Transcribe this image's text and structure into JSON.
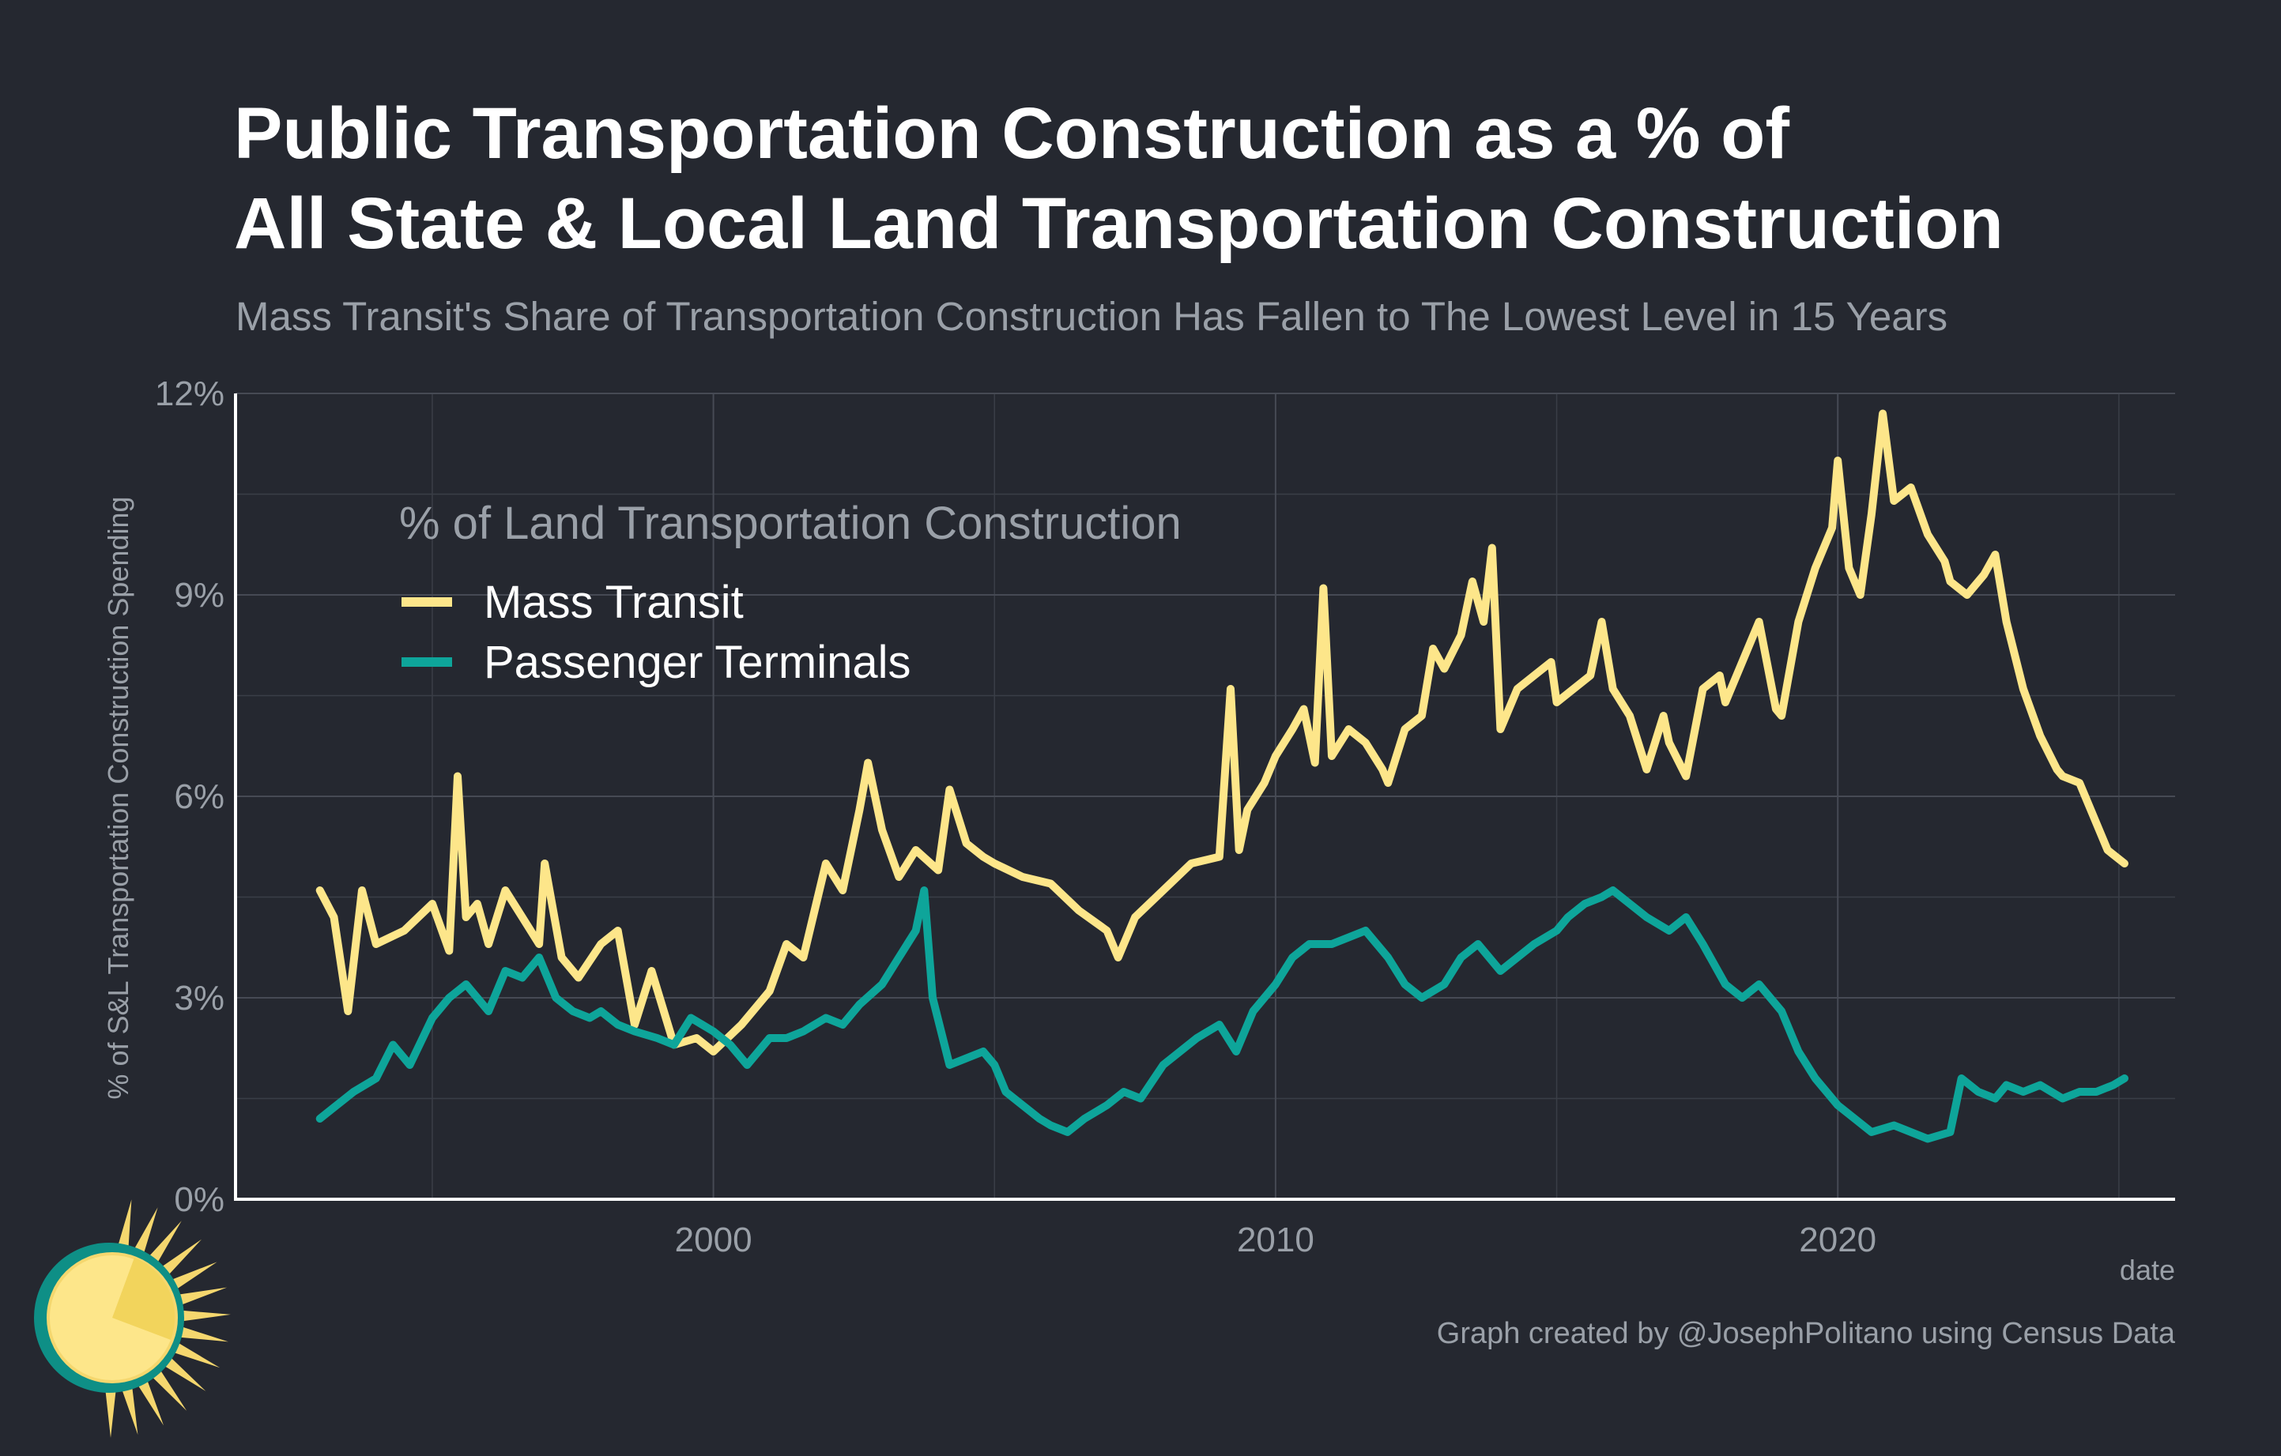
{
  "chart_data": {
    "type": "line",
    "title_line1": "Public Transportation Construction as a % of",
    "title_line2": "All State & Local Land Transportation Construction",
    "subtitle": "Mass Transit's Share of Transportation Construction Has Fallen to The Lowest Level in 15 Years",
    "xlabel": "date",
    "ylabel": "% of S&L Transportation Construction Spending",
    "caption": "Graph created by @JosephPolitano using Census Data",
    "legend_title": "% of Land Transportation Construction",
    "legend_position": "top-left",
    "grid": true,
    "xlim": [
      1991.5,
      2026.0
    ],
    "ylim": [
      0,
      12
    ],
    "x_ticks": [
      2000,
      2010,
      2020
    ],
    "x_tick_labels": [
      "2000",
      "2010",
      "2020"
    ],
    "y_ticks": [
      0,
      3,
      6,
      9,
      12
    ],
    "y_tick_labels": [
      "0%",
      "3%",
      "6%",
      "9%",
      "12%"
    ],
    "series": [
      {
        "name": "Mass Transit",
        "color": "#fde68a",
        "points": [
          [
            1993.0,
            4.6
          ],
          [
            1993.25,
            4.2
          ],
          [
            1993.5,
            2.8
          ],
          [
            1993.75,
            4.6
          ],
          [
            1994.0,
            3.8
          ],
          [
            1994.5,
            4.0
          ],
          [
            1995.0,
            4.4
          ],
          [
            1995.3,
            3.7
          ],
          [
            1995.45,
            6.3
          ],
          [
            1995.6,
            4.2
          ],
          [
            1995.8,
            4.4
          ],
          [
            1996.0,
            3.8
          ],
          [
            1996.3,
            4.6
          ],
          [
            1996.6,
            4.2
          ],
          [
            1996.9,
            3.8
          ],
          [
            1997.0,
            5.0
          ],
          [
            1997.3,
            3.6
          ],
          [
            1997.6,
            3.3
          ],
          [
            1998.0,
            3.8
          ],
          [
            1998.3,
            4.0
          ],
          [
            1998.6,
            2.6
          ],
          [
            1998.9,
            3.4
          ],
          [
            1999.3,
            2.3
          ],
          [
            1999.7,
            2.4
          ],
          [
            2000.0,
            2.2
          ],
          [
            2000.5,
            2.6
          ],
          [
            2001.0,
            3.1
          ],
          [
            2001.3,
            3.8
          ],
          [
            2001.6,
            3.6
          ],
          [
            2002.0,
            5.0
          ],
          [
            2002.3,
            4.6
          ],
          [
            2002.6,
            5.8
          ],
          [
            2002.75,
            6.5
          ],
          [
            2003.0,
            5.5
          ],
          [
            2003.3,
            4.8
          ],
          [
            2003.6,
            5.2
          ],
          [
            2004.0,
            4.9
          ],
          [
            2004.2,
            6.1
          ],
          [
            2004.5,
            5.3
          ],
          [
            2004.8,
            5.1
          ],
          [
            2005.0,
            5.0
          ],
          [
            2005.5,
            4.8
          ],
          [
            2006.0,
            4.7
          ],
          [
            2006.5,
            4.3
          ],
          [
            2007.0,
            4.0
          ],
          [
            2007.2,
            3.6
          ],
          [
            2007.5,
            4.2
          ],
          [
            2008.0,
            4.6
          ],
          [
            2008.5,
            5.0
          ],
          [
            2009.0,
            5.1
          ],
          [
            2009.2,
            7.6
          ],
          [
            2009.35,
            5.2
          ],
          [
            2009.5,
            5.8
          ],
          [
            2009.8,
            6.2
          ],
          [
            2010.0,
            6.6
          ],
          [
            2010.3,
            7.0
          ],
          [
            2010.5,
            7.3
          ],
          [
            2010.7,
            6.5
          ],
          [
            2010.85,
            9.1
          ],
          [
            2011.0,
            6.6
          ],
          [
            2011.3,
            7.0
          ],
          [
            2011.6,
            6.8
          ],
          [
            2011.9,
            6.4
          ],
          [
            2012.0,
            6.2
          ],
          [
            2012.3,
            7.0
          ],
          [
            2012.6,
            7.2
          ],
          [
            2012.8,
            8.2
          ],
          [
            2013.0,
            7.9
          ],
          [
            2013.3,
            8.4
          ],
          [
            2013.5,
            9.2
          ],
          [
            2013.7,
            8.6
          ],
          [
            2013.85,
            9.7
          ],
          [
            2014.0,
            7.0
          ],
          [
            2014.3,
            7.6
          ],
          [
            2014.6,
            7.8
          ],
          [
            2014.9,
            8.0
          ],
          [
            2015.0,
            7.4
          ],
          [
            2015.3,
            7.6
          ],
          [
            2015.6,
            7.8
          ],
          [
            2015.8,
            8.6
          ],
          [
            2016.0,
            7.6
          ],
          [
            2016.3,
            7.2
          ],
          [
            2016.6,
            6.4
          ],
          [
            2016.9,
            7.2
          ],
          [
            2017.0,
            6.8
          ],
          [
            2017.3,
            6.3
          ],
          [
            2017.6,
            7.6
          ],
          [
            2017.9,
            7.8
          ],
          [
            2018.0,
            7.4
          ],
          [
            2018.3,
            8.0
          ],
          [
            2018.6,
            8.6
          ],
          [
            2018.9,
            7.3
          ],
          [
            2019.0,
            7.2
          ],
          [
            2019.3,
            8.6
          ],
          [
            2019.6,
            9.4
          ],
          [
            2019.9,
            10.0
          ],
          [
            2020.0,
            11.0
          ],
          [
            2020.2,
            9.4
          ],
          [
            2020.4,
            9.0
          ],
          [
            2020.6,
            10.2
          ],
          [
            2020.8,
            11.7
          ],
          [
            2021.0,
            10.4
          ],
          [
            2021.3,
            10.6
          ],
          [
            2021.6,
            9.9
          ],
          [
            2021.9,
            9.5
          ],
          [
            2022.0,
            9.2
          ],
          [
            2022.3,
            9.0
          ],
          [
            2022.6,
            9.3
          ],
          [
            2022.8,
            9.6
          ],
          [
            2023.0,
            8.6
          ],
          [
            2023.3,
            7.6
          ],
          [
            2023.6,
            6.9
          ],
          [
            2023.9,
            6.4
          ],
          [
            2024.0,
            6.3
          ],
          [
            2024.3,
            6.2
          ],
          [
            2024.6,
            5.6
          ],
          [
            2024.8,
            5.2
          ],
          [
            2025.1,
            5.0
          ]
        ]
      },
      {
        "name": "Passenger Terminals",
        "color": "#0ea59a",
        "points": [
          [
            1993.0,
            1.2
          ],
          [
            1993.3,
            1.4
          ],
          [
            1993.6,
            1.6
          ],
          [
            1994.0,
            1.8
          ],
          [
            1994.3,
            2.3
          ],
          [
            1994.6,
            2.0
          ],
          [
            1995.0,
            2.7
          ],
          [
            1995.3,
            3.0
          ],
          [
            1995.6,
            3.2
          ],
          [
            1996.0,
            2.8
          ],
          [
            1996.3,
            3.4
          ],
          [
            1996.6,
            3.3
          ],
          [
            1996.9,
            3.6
          ],
          [
            1997.2,
            3.0
          ],
          [
            1997.5,
            2.8
          ],
          [
            1997.8,
            2.7
          ],
          [
            1998.0,
            2.8
          ],
          [
            1998.3,
            2.6
          ],
          [
            1998.6,
            2.5
          ],
          [
            1999.0,
            2.4
          ],
          [
            1999.3,
            2.3
          ],
          [
            1999.6,
            2.7
          ],
          [
            2000.0,
            2.5
          ],
          [
            2000.3,
            2.3
          ],
          [
            2000.6,
            2.0
          ],
          [
            2001.0,
            2.4
          ],
          [
            2001.3,
            2.4
          ],
          [
            2001.6,
            2.5
          ],
          [
            2002.0,
            2.7
          ],
          [
            2002.3,
            2.6
          ],
          [
            2002.6,
            2.9
          ],
          [
            2003.0,
            3.2
          ],
          [
            2003.3,
            3.6
          ],
          [
            2003.6,
            4.0
          ],
          [
            2003.75,
            4.6
          ],
          [
            2003.9,
            3.0
          ],
          [
            2004.2,
            2.0
          ],
          [
            2004.5,
            2.1
          ],
          [
            2004.8,
            2.2
          ],
          [
            2005.0,
            2.0
          ],
          [
            2005.2,
            1.6
          ],
          [
            2005.5,
            1.4
          ],
          [
            2005.8,
            1.2
          ],
          [
            2006.0,
            1.1
          ],
          [
            2006.3,
            1.0
          ],
          [
            2006.6,
            1.2
          ],
          [
            2007.0,
            1.4
          ],
          [
            2007.3,
            1.6
          ],
          [
            2007.6,
            1.5
          ],
          [
            2008.0,
            2.0
          ],
          [
            2008.3,
            2.2
          ],
          [
            2008.6,
            2.4
          ],
          [
            2009.0,
            2.6
          ],
          [
            2009.3,
            2.2
          ],
          [
            2009.6,
            2.8
          ],
          [
            2010.0,
            3.2
          ],
          [
            2010.3,
            3.6
          ],
          [
            2010.6,
            3.8
          ],
          [
            2011.0,
            3.8
          ],
          [
            2011.3,
            3.9
          ],
          [
            2011.6,
            4.0
          ],
          [
            2012.0,
            3.6
          ],
          [
            2012.3,
            3.2
          ],
          [
            2012.6,
            3.0
          ],
          [
            2013.0,
            3.2
          ],
          [
            2013.3,
            3.6
          ],
          [
            2013.6,
            3.8
          ],
          [
            2014.0,
            3.4
          ],
          [
            2014.3,
            3.6
          ],
          [
            2014.6,
            3.8
          ],
          [
            2015.0,
            4.0
          ],
          [
            2015.2,
            4.2
          ],
          [
            2015.5,
            4.4
          ],
          [
            2015.8,
            4.5
          ],
          [
            2016.0,
            4.6
          ],
          [
            2016.3,
            4.4
          ],
          [
            2016.6,
            4.2
          ],
          [
            2017.0,
            4.0
          ],
          [
            2017.3,
            4.2
          ],
          [
            2017.6,
            3.8
          ],
          [
            2018.0,
            3.2
          ],
          [
            2018.3,
            3.0
          ],
          [
            2018.6,
            3.2
          ],
          [
            2019.0,
            2.8
          ],
          [
            2019.3,
            2.2
          ],
          [
            2019.6,
            1.8
          ],
          [
            2020.0,
            1.4
          ],
          [
            2020.3,
            1.2
          ],
          [
            2020.6,
            1.0
          ],
          [
            2021.0,
            1.1
          ],
          [
            2021.3,
            1.0
          ],
          [
            2021.6,
            0.9
          ],
          [
            2022.0,
            1.0
          ],
          [
            2022.2,
            1.8
          ],
          [
            2022.5,
            1.6
          ],
          [
            2022.8,
            1.5
          ],
          [
            2023.0,
            1.7
          ],
          [
            2023.3,
            1.6
          ],
          [
            2023.6,
            1.7
          ],
          [
            2024.0,
            1.5
          ],
          [
            2024.3,
            1.6
          ],
          [
            2024.6,
            1.6
          ],
          [
            2024.9,
            1.7
          ],
          [
            2025.1,
            1.8
          ]
        ]
      }
    ]
  },
  "logo": {
    "name": "sun-logo",
    "ring_color": "#0e8f86",
    "sun_color": "#fde68a",
    "ray_color": "#f5d76e"
  }
}
